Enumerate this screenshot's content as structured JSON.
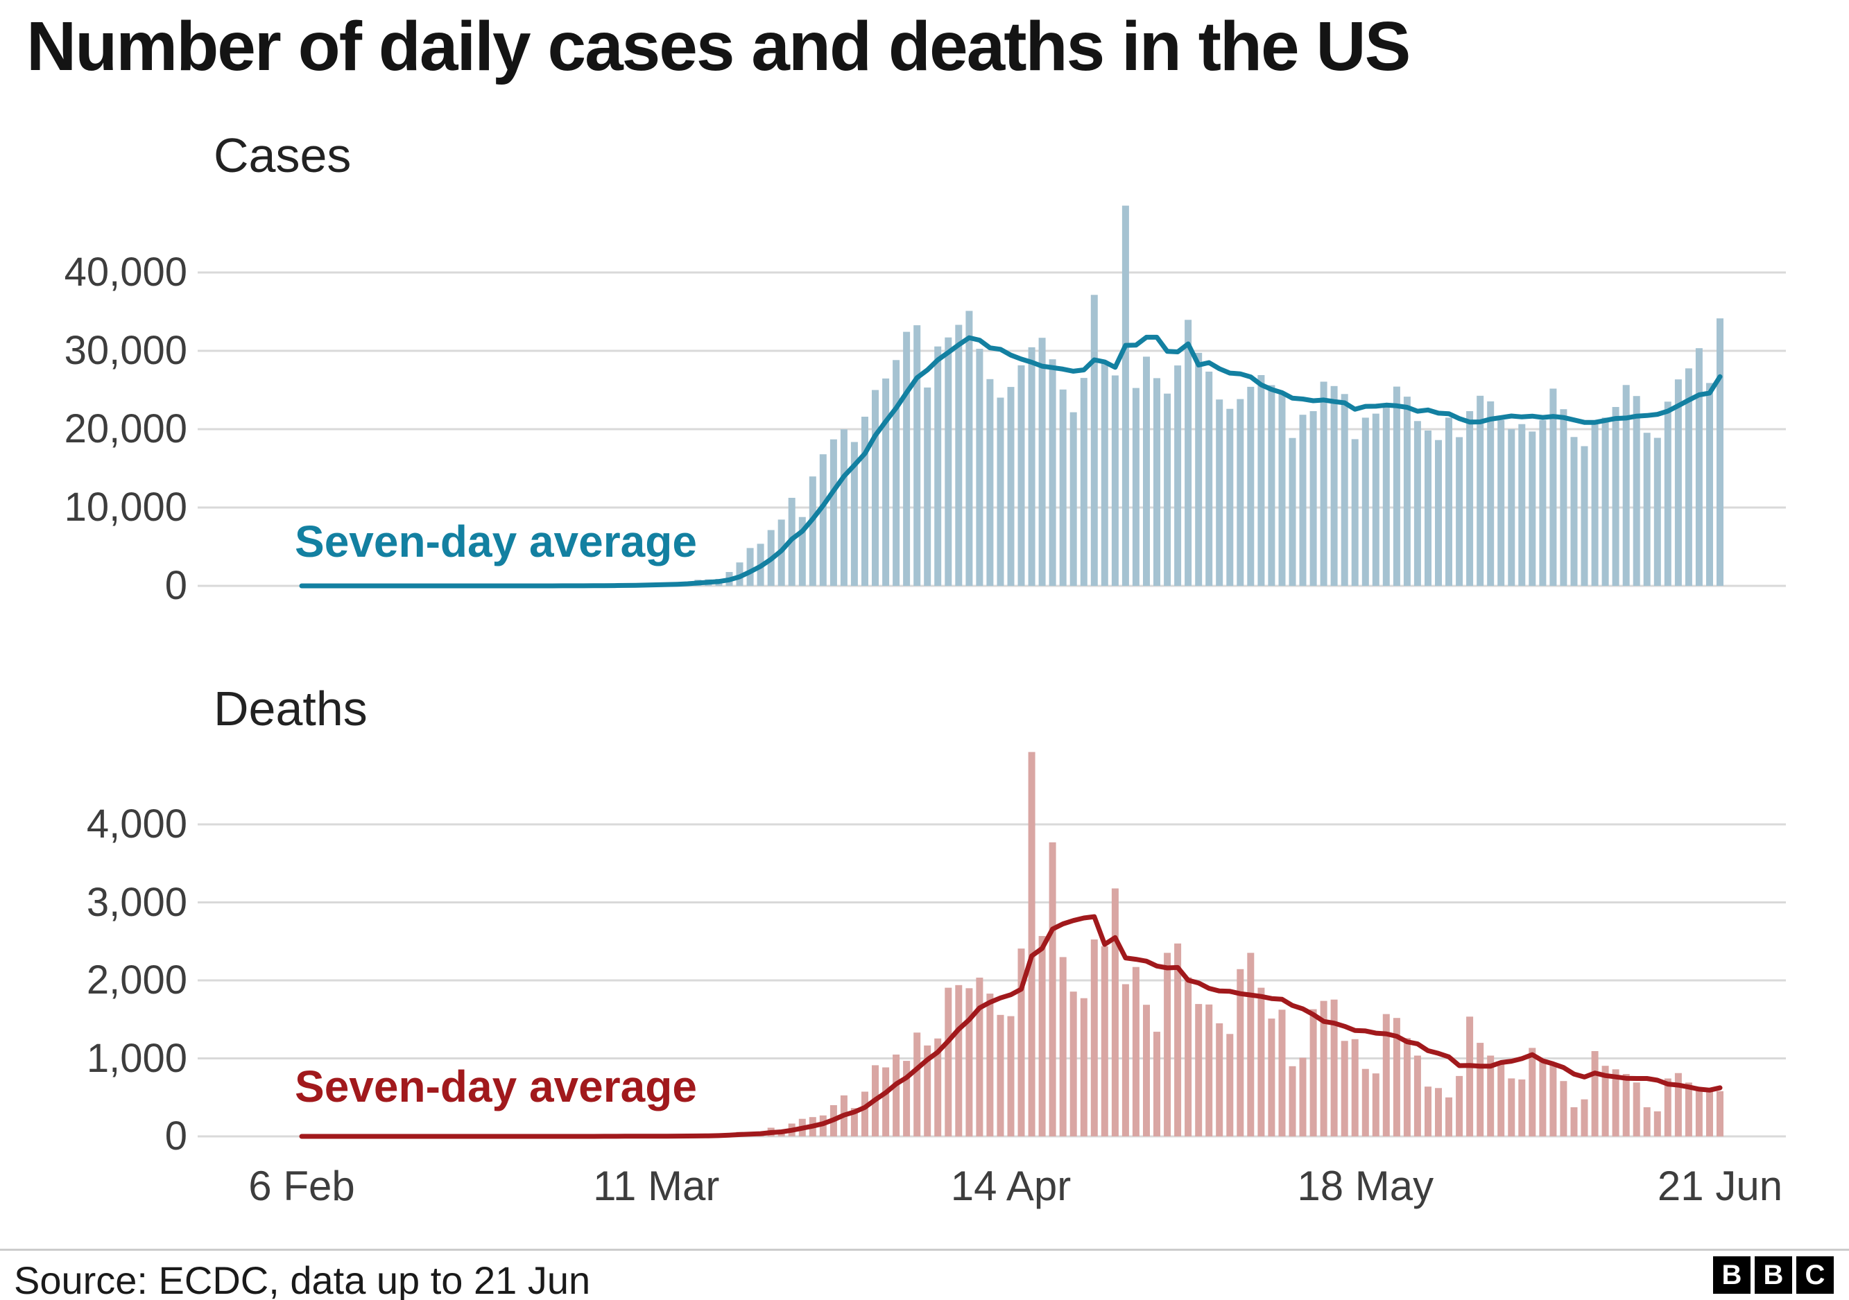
{
  "title": "Number of daily cases and deaths in the US",
  "x_axis": {
    "tick_labels": [
      "6 Feb",
      "11 Mar",
      "14 Apr",
      "18 May",
      "21 Jun"
    ],
    "tick_day_indices": [
      0,
      34,
      68,
      102,
      136
    ]
  },
  "chart_data": [
    {
      "type": "bar",
      "title": "Cases",
      "x_start": "6 Feb",
      "x_end": "21 Jun",
      "frequency": "daily",
      "overlay": {
        "type": "line",
        "name": "Seven-day average",
        "derivation": "trailing 7-day mean of daily values"
      },
      "y_ticks": [
        0,
        10000,
        20000,
        30000,
        40000
      ],
      "y_tick_labels": [
        "0",
        "10,000",
        "20,000",
        "30,000",
        "40,000"
      ],
      "ylim": [
        0,
        48600
      ],
      "colors": {
        "bar": "#a5c2d1",
        "line": "#1380a1"
      },
      "values": [
        0,
        0,
        1,
        0,
        0,
        2,
        0,
        1,
        0,
        3,
        0,
        0,
        1,
        0,
        0,
        2,
        0,
        1,
        0,
        0,
        3,
        1,
        6,
        8,
        3,
        20,
        14,
        22,
        34,
        74,
        105,
        95,
        121,
        200,
        271,
        287,
        351,
        511,
        777,
        823,
        887,
        1766,
        2988,
        4835,
        5374,
        7123,
        8459,
        11236,
        8789,
        13963,
        16797,
        18695,
        19979,
        18360,
        21595,
        24998,
        26473,
        28819,
        32425,
        33264,
        25316,
        30561,
        31709,
        33323,
        35098,
        30260,
        26391,
        24023,
        25385,
        28148,
        30451,
        31667,
        28922,
        25065,
        22156,
        26543,
        37144,
        28580,
        26857,
        48529,
        25256,
        29256,
        26509,
        24541,
        28132,
        33955,
        29744,
        27348,
        23792,
        22593,
        23841,
        25409,
        26906,
        25621,
        24472,
        18873,
        21841,
        22297,
        26066,
        25508,
        24487,
        18722,
        21467,
        21981,
        23285,
        25434,
        24147,
        21035,
        19826,
        18611,
        21472,
        18982,
        22303,
        24266,
        23553,
        21180,
        20007,
        20647,
        19699,
        21140,
        25176,
        22553,
        18999,
        17836,
        20650,
        21481,
        22833,
        25641,
        24227,
        19543,
        18893,
        23516,
        26357,
        27762,
        30338,
        25890,
        34143
      ]
    },
    {
      "type": "bar",
      "title": "Deaths",
      "x_start": "6 Feb",
      "x_end": "21 Jun",
      "frequency": "daily",
      "overlay": {
        "type": "line",
        "name": "Seven-day average",
        "derivation": "trailing 7-day mean of daily values"
      },
      "y_ticks": [
        0,
        1000,
        2000,
        3000,
        4000
      ],
      "y_tick_labels": [
        "0",
        "1,000",
        "2,000",
        "3,000",
        "4,000"
      ],
      "ylim": [
        0,
        4950
      ],
      "colors": {
        "bar": "#d9a6a3",
        "line": "#a1191c"
      },
      "values": [
        0,
        0,
        0,
        0,
        0,
        0,
        0,
        0,
        0,
        0,
        0,
        0,
        0,
        0,
        0,
        0,
        0,
        0,
        0,
        0,
        0,
        0,
        0,
        0,
        0,
        0,
        1,
        1,
        1,
        2,
        2,
        3,
        4,
        3,
        4,
        2,
        6,
        8,
        10,
        16,
        23,
        41,
        57,
        49,
        46,
        111,
        80,
        164,
        225,
        247,
        268,
        400,
        525,
        363,
        573,
        912,
        884,
        1049,
        968,
        1331,
        1165,
        1255,
        1906,
        1940,
        1900,
        2035,
        1830,
        1557,
        1541,
        2408,
        4928,
        2569,
        3770,
        2299,
        1856,
        1772,
        2524,
        2437,
        3179,
        1951,
        2172,
        1687,
        1341,
        2353,
        2473,
        2040,
        1697,
        1691,
        1450,
        1313,
        2144,
        2353,
        1906,
        1510,
        1624,
        900,
        1008,
        1630,
        1737,
        1754,
        1224,
        1246,
        865,
        807,
        1568,
        1518,
        1260,
        1036,
        638,
        620,
        500,
        774,
        1535,
        1199,
        1036,
        960,
        743,
        730,
        1134,
        982,
        921,
        709,
        373,
        475,
        1093,
        905,
        860,
        800,
        691,
        373,
        321,
        742,
        812,
        690,
        610,
        605,
        580
      ]
    }
  ],
  "footer": {
    "source": "Source: ECDC, data up to 21 Jun",
    "logo_letters": [
      "B",
      "B",
      "C"
    ]
  }
}
